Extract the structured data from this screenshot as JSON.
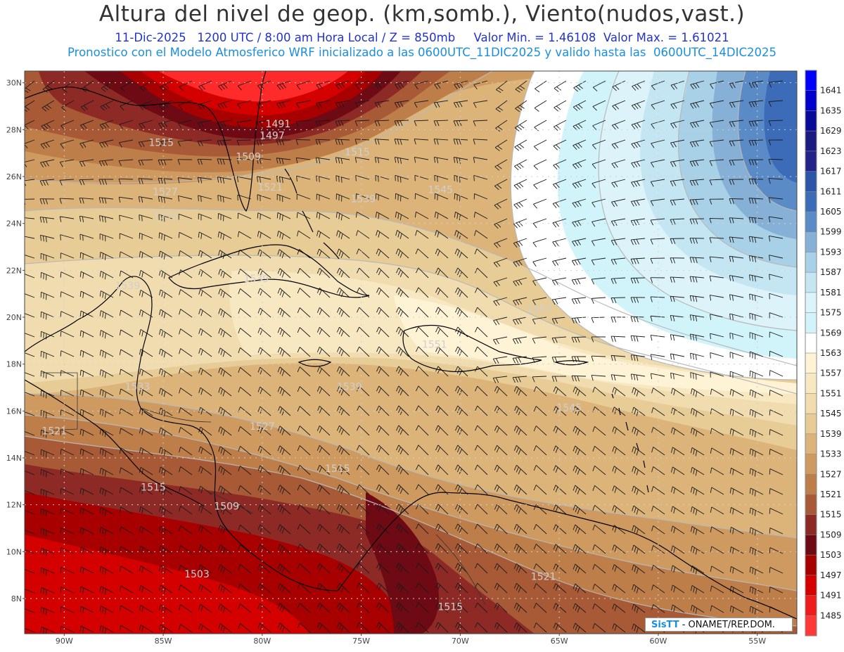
{
  "title": "Altura del nivel de geop. (km,somb.), Viento(nudos,vast.)",
  "subtitle_line1": "11-Dic-2025   1200 UTC / 8:00 am Hora Local / Z = 850mb     Valor Min. = 1.46108  Valor Max. = 1.61021",
  "subtitle_line2": "Pronostico con el Modelo Atmosferico WRF inicializado a las 0600UTC_11DIC2025 y valido hasta las  0600UTC_14DIC2025",
  "credit": {
    "brand": "SisTT",
    "text": " - ONAMET/REP.DOM."
  },
  "map": {
    "lon_range": [
      -92.0,
      -53.0
    ],
    "lat_range": [
      6.5,
      30.5
    ],
    "lat_ticks": [
      "30N",
      "28N",
      "26N",
      "24N",
      "22N",
      "20N",
      "18N",
      "16N",
      "14N",
      "12N",
      "10N",
      "8N"
    ],
    "lon_ticks": [
      "90W",
      "85W",
      "80W",
      "75W",
      "70W",
      "65W",
      "60W",
      "55W"
    ],
    "contour_labels": [
      {
        "text": "1491",
        "lon": -79.2,
        "lat": 28.1
      },
      {
        "text": "1497",
        "lon": -79.5,
        "lat": 27.6
      },
      {
        "text": "1509",
        "lon": -80.7,
        "lat": 26.7
      },
      {
        "text": "1515",
        "lon": -85.1,
        "lat": 27.3
      },
      {
        "text": "1515",
        "lon": -75.2,
        "lat": 26.9
      },
      {
        "text": "1521",
        "lon": -79.6,
        "lat": 25.4
      },
      {
        "text": "1527",
        "lon": -84.9,
        "lat": 25.2
      },
      {
        "text": "1533",
        "lon": -84.9,
        "lat": 24.2
      },
      {
        "text": "1539",
        "lon": -74.9,
        "lat": 24.9
      },
      {
        "text": "1545",
        "lon": -71.0,
        "lat": 25.3
      },
      {
        "text": "1539",
        "lon": -86.8,
        "lat": 21.2
      },
      {
        "text": "1539",
        "lon": -80.3,
        "lat": 21.5
      },
      {
        "text": "1557",
        "lon": -66.0,
        "lat": 20.2
      },
      {
        "text": "1551",
        "lon": -71.3,
        "lat": 18.7
      },
      {
        "text": "1539",
        "lon": -75.6,
        "lat": 16.9
      },
      {
        "text": "1533",
        "lon": -86.3,
        "lat": 16.9
      },
      {
        "text": "1545",
        "lon": -64.5,
        "lat": 16.0
      },
      {
        "text": "1527",
        "lon": -80.0,
        "lat": 15.2
      },
      {
        "text": "1521",
        "lon": -90.5,
        "lat": 15.0
      },
      {
        "text": "1515",
        "lon": -76.2,
        "lat": 13.4
      },
      {
        "text": "1515",
        "lon": -85.5,
        "lat": 12.6
      },
      {
        "text": "1509",
        "lon": -81.8,
        "lat": 11.8
      },
      {
        "text": "1503",
        "lon": -83.3,
        "lat": 8.9
      },
      {
        "text": "1521",
        "lon": -65.8,
        "lat": 8.8
      },
      {
        "text": "1515",
        "lon": -70.5,
        "lat": 7.5
      }
    ]
  },
  "colorbar": {
    "labels": [
      "1641",
      "1635",
      "1629",
      "1623",
      "1617",
      "1611",
      "1605",
      "1599",
      "1593",
      "1587",
      "1581",
      "1575",
      "1569",
      "1563",
      "1557",
      "1551",
      "1545",
      "1539",
      "1533",
      "1527",
      "1521",
      "1515",
      "1509",
      "1503",
      "1497",
      "1491",
      "1485"
    ],
    "colors": [
      "#0000ff",
      "#0000cc",
      "#0a0a99",
      "#1a1a80",
      "#222288",
      "#2e56a8",
      "#3c6cb8",
      "#5a8bc6",
      "#86b0d6",
      "#a8d0e6",
      "#c4e6f2",
      "#ddf3fa",
      "#d0f4fa",
      "#ffffff",
      "#fff3d6",
      "#f7e8c2",
      "#f0dcae",
      "#e8cc96",
      "#dcb47a",
      "#cf9a60",
      "#be7e4a",
      "#a85a36",
      "#8e2a26",
      "#6e0a14",
      "#a80000",
      "#d40000",
      "#ee1c1c",
      "#ff3838"
    ],
    "accent": "#1a8fe0"
  }
}
